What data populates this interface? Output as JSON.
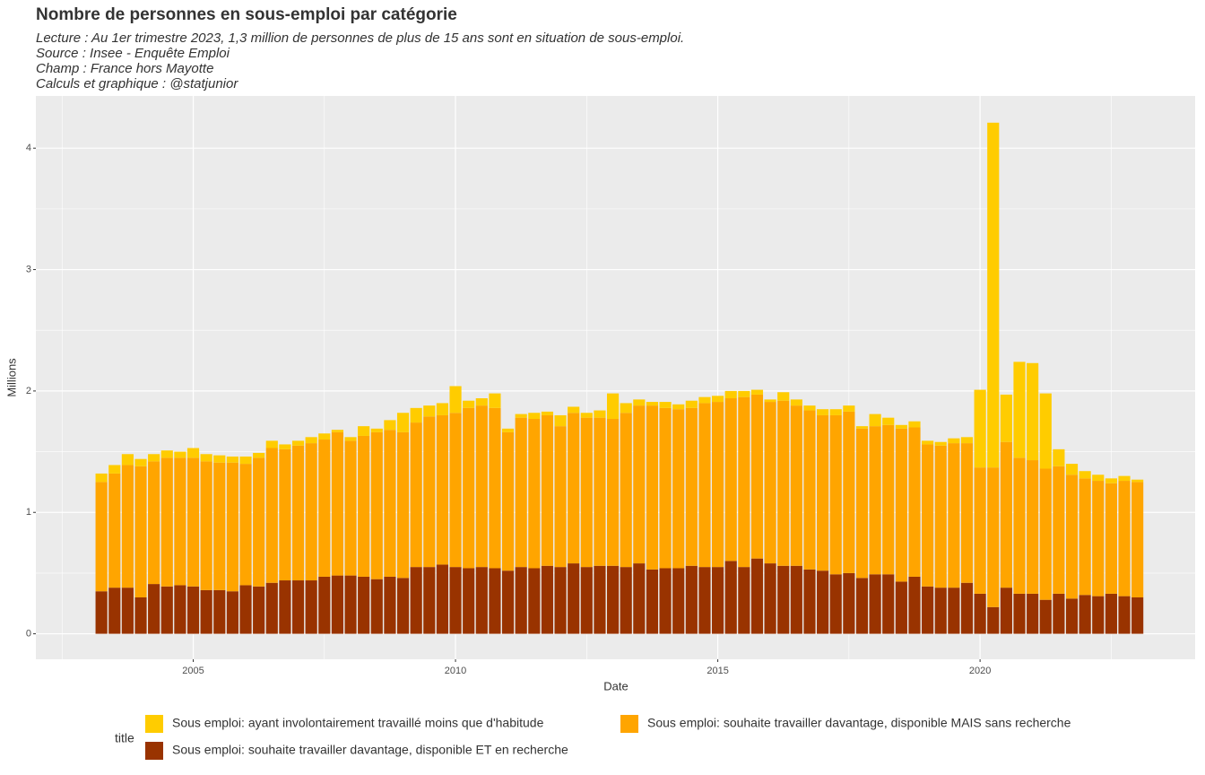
{
  "chart_data": {
    "type": "stacked_bar",
    "title": "Nombre de personnes en sous-emploi par catégorie",
    "subtitle": [
      "Lecture : Au 1er trimestre 2023, 1,3 million de personnes de plus de 15 ans sont en situation de sous-emploi.",
      "Source : Insee - Enquête Emploi",
      "Champ : France hors Mayotte",
      "Calculs et graphique : @statjunior"
    ],
    "x_label": "Date",
    "y_label": "Millions",
    "legend_title": "title",
    "x": [
      2003.25,
      2003.5,
      2003.75,
      2004,
      2004.25,
      2004.5,
      2004.75,
      2005,
      2005.25,
      2005.5,
      2005.75,
      2006,
      2006.25,
      2006.5,
      2006.75,
      2007,
      2007.25,
      2007.5,
      2007.75,
      2008,
      2008.25,
      2008.5,
      2008.75,
      2009,
      2009.25,
      2009.5,
      2009.75,
      2010,
      2010.25,
      2010.5,
      2010.75,
      2011,
      2011.25,
      2011.5,
      2011.75,
      2012,
      2012.25,
      2012.5,
      2012.75,
      2013,
      2013.25,
      2013.5,
      2013.75,
      2014,
      2014.25,
      2014.5,
      2014.75,
      2015,
      2015.25,
      2015.5,
      2015.75,
      2016,
      2016.25,
      2016.5,
      2016.75,
      2017,
      2017.25,
      2017.5,
      2017.75,
      2018,
      2018.25,
      2018.5,
      2018.75,
      2019,
      2019.25,
      2019.5,
      2019.75,
      2020,
      2020.25,
      2020.5,
      2020.75,
      2021,
      2021.25,
      2021.5,
      2021.75,
      2022,
      2022.25,
      2022.5,
      2022.75,
      2023
    ],
    "series": [
      {
        "name": "Sous emploi: ayant involontairement travaillé moins que d'habitude",
        "color": "#ffcc00",
        "values": [
          0.07,
          0.07,
          0.09,
          0.06,
          0.06,
          0.06,
          0.05,
          0.08,
          0.06,
          0.06,
          0.05,
          0.06,
          0.04,
          0.06,
          0.04,
          0.04,
          0.05,
          0.05,
          0.02,
          0.03,
          0.08,
          0.03,
          0.08,
          0.16,
          0.12,
          0.09,
          0.1,
          0.22,
          0.06,
          0.06,
          0.12,
          0.03,
          0.03,
          0.05,
          0.03,
          0.09,
          0.05,
          0.04,
          0.06,
          0.21,
          0.08,
          0.05,
          0.03,
          0.05,
          0.04,
          0.06,
          0.05,
          0.05,
          0.06,
          0.05,
          0.04,
          0.02,
          0.07,
          0.05,
          0.04,
          0.05,
          0.05,
          0.05,
          0.02,
          0.1,
          0.06,
          0.03,
          0.05,
          0.03,
          0.03,
          0.04,
          0.05,
          0.64,
          2.84,
          0.39,
          0.79,
          0.8,
          0.62,
          0.14,
          0.09,
          0.06,
          0.05,
          0.04,
          0.04,
          0.02
        ]
      },
      {
        "name": "Sous emploi: souhaite travailler davantage, disponible MAIS sans recherche",
        "color": "#ffa500",
        "values": [
          0.9,
          0.94,
          1.01,
          1.08,
          1.01,
          1.06,
          1.05,
          1.06,
          1.06,
          1.05,
          1.06,
          1.0,
          1.06,
          1.11,
          1.08,
          1.11,
          1.13,
          1.13,
          1.18,
          1.11,
          1.16,
          1.21,
          1.21,
          1.2,
          1.19,
          1.24,
          1.23,
          1.27,
          1.32,
          1.33,
          1.32,
          1.14,
          1.23,
          1.23,
          1.24,
          1.16,
          1.24,
          1.23,
          1.22,
          1.21,
          1.27,
          1.3,
          1.35,
          1.32,
          1.31,
          1.3,
          1.35,
          1.36,
          1.34,
          1.4,
          1.35,
          1.33,
          1.36,
          1.32,
          1.31,
          1.28,
          1.31,
          1.33,
          1.23,
          1.22,
          1.23,
          1.26,
          1.23,
          1.17,
          1.17,
          1.19,
          1.15,
          1.04,
          1.15,
          1.2,
          1.12,
          1.1,
          1.08,
          1.05,
          1.02,
          0.96,
          0.95,
          0.91,
          0.95,
          0.95
        ]
      },
      {
        "name": "Sous emploi: souhaite travailler davantage, disponible ET en recherche",
        "color": "#993300",
        "values": [
          0.35,
          0.38,
          0.38,
          0.3,
          0.41,
          0.39,
          0.4,
          0.39,
          0.36,
          0.36,
          0.35,
          0.4,
          0.39,
          0.42,
          0.44,
          0.44,
          0.44,
          0.47,
          0.48,
          0.48,
          0.47,
          0.45,
          0.47,
          0.46,
          0.55,
          0.55,
          0.57,
          0.55,
          0.54,
          0.55,
          0.54,
          0.52,
          0.55,
          0.54,
          0.56,
          0.55,
          0.58,
          0.55,
          0.56,
          0.56,
          0.55,
          0.58,
          0.53,
          0.54,
          0.54,
          0.56,
          0.55,
          0.55,
          0.6,
          0.55,
          0.62,
          0.58,
          0.56,
          0.56,
          0.53,
          0.52,
          0.49,
          0.5,
          0.46,
          0.49,
          0.49,
          0.43,
          0.47,
          0.39,
          0.38,
          0.38,
          0.42,
          0.33,
          0.22,
          0.38,
          0.33,
          0.33,
          0.28,
          0.33,
          0.29,
          0.32,
          0.31,
          0.33,
          0.31,
          0.3
        ]
      }
    ],
    "xlim": [
      2002.0,
      2024.1
    ],
    "xticks": [
      2005,
      2010,
      2015,
      2020
    ],
    "ylim": [
      -0.21,
      4.43
    ],
    "yticks": [
      0,
      1,
      2,
      3,
      4
    ],
    "grid": true
  }
}
